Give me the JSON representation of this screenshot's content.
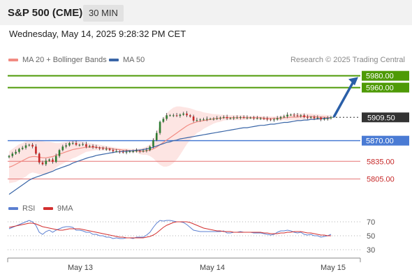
{
  "header": {
    "title": "S&P 500 (CME)",
    "timeframe": "30 MIN"
  },
  "datetime": "Wednesday, May 14, 2025 9:28:32 PM CET",
  "legend": {
    "ma20_label": "MA 20 + Bollinger Bands",
    "ma50_label": "MA 50",
    "credit": "Research © 2025 Trading Central"
  },
  "rsi_legend": {
    "rsi_label": "RSI",
    "ma9_label": "9MA"
  },
  "colors": {
    "candle_up": "#2e7d32",
    "candle_down": "#c62828",
    "ma20": "#f28b82",
    "bollinger_fill": "#fde0de",
    "ma50": "#3a66a7",
    "resistance": "#4e9a06",
    "support_blue": "#4a7bd4",
    "support_red": "#e57373",
    "current_price_bg": "#333333",
    "arrow": "#2a5fa8",
    "rsi_line": "#5b7fd1",
    "rsi_ma": "#d32f2f"
  },
  "chart_data": [
    {
      "type": "candlestick",
      "ylim": [
        5775,
        5995
      ],
      "x_ticks": [
        "May 13",
        "May 14",
        "May 15"
      ],
      "current_price": "5909.50",
      "levels": [
        {
          "value": 5980.0,
          "label": "5980.00",
          "kind": "resistance"
        },
        {
          "value": 5960.0,
          "label": "5960.00",
          "kind": "resistance"
        },
        {
          "value": 5870.0,
          "label": "5870.00",
          "kind": "pivot"
        },
        {
          "value": 5835.0,
          "label": "5835.00",
          "kind": "support"
        },
        {
          "value": 5805.0,
          "label": "5805.00",
          "kind": "support"
        }
      ],
      "arrow": {
        "from": 5910,
        "to": 5978
      },
      "close": [
        5844,
        5848,
        5851,
        5856,
        5858,
        5862,
        5863,
        5860,
        5848,
        5833,
        5830,
        5836,
        5838,
        5834,
        5844,
        5854,
        5860,
        5862,
        5866,
        5866,
        5863,
        5863,
        5864,
        5860,
        5861,
        5859,
        5858,
        5857,
        5856,
        5856,
        5854,
        5852,
        5852,
        5851,
        5850,
        5851,
        5852,
        5852,
        5853,
        5852,
        5853,
        5854,
        5860,
        5871,
        5883,
        5902,
        5907,
        5913,
        5913,
        5913,
        5912,
        5914,
        5916,
        5913,
        5911,
        5904,
        5905,
        5906,
        5906,
        5907,
        5907,
        5907,
        5908,
        5909,
        5910,
        5908,
        5908,
        5909,
        5909,
        5910,
        5909,
        5909,
        5909,
        5908,
        5908,
        5908,
        5907,
        5906,
        5905,
        5906,
        5908,
        5910,
        5911,
        5914,
        5914,
        5913,
        5912,
        5913,
        5910,
        5909,
        5910,
        5908,
        5909,
        5906,
        5907,
        5908,
        5910
      ],
      "ma20": [
        5825,
        5827,
        5830,
        5833,
        5836,
        5839,
        5842,
        5843,
        5843,
        5842,
        5841,
        5841,
        5842,
        5843,
        5845,
        5847,
        5849,
        5851,
        5853,
        5855,
        5856,
        5857,
        5858,
        5859,
        5859,
        5859,
        5859,
        5858,
        5858,
        5857,
        5857,
        5856,
        5855,
        5855,
        5854,
        5854,
        5853,
        5853,
        5853,
        5852,
        5852,
        5853,
        5854,
        5856,
        5859,
        5863,
        5867,
        5871,
        5875,
        5879,
        5883,
        5887,
        5891,
        5895,
        5898,
        5900,
        5902,
        5903,
        5904,
        5905,
        5906,
        5907,
        5908,
        5908,
        5909,
        5909,
        5909,
        5909,
        5909,
        5909,
        5909,
        5909,
        5909,
        5909,
        5909,
        5909,
        5908,
        5908,
        5908,
        5908,
        5908,
        5908,
        5909,
        5909,
        5910,
        5910,
        5910,
        5911,
        5911,
        5911,
        5911,
        5911,
        5910,
        5910,
        5910,
        5909,
        5909
      ],
      "bb_upper": [
        5852,
        5856,
        5860,
        5864,
        5866,
        5869,
        5870,
        5871,
        5871,
        5871,
        5869,
        5868,
        5868,
        5867,
        5866,
        5866,
        5867,
        5868,
        5869,
        5870,
        5870,
        5869,
        5868,
        5867,
        5866,
        5865,
        5864,
        5863,
        5862,
        5861,
        5860,
        5859,
        5858,
        5857,
        5857,
        5857,
        5856,
        5856,
        5856,
        5857,
        5858,
        5860,
        5864,
        5872,
        5884,
        5897,
        5908,
        5916,
        5922,
        5926,
        5928,
        5928,
        5927,
        5926,
        5925,
        5923,
        5921,
        5920,
        5918,
        5917,
        5916,
        5915,
        5915,
        5914,
        5914,
        5913,
        5913,
        5913,
        5913,
        5913,
        5913,
        5912,
        5912,
        5912,
        5912,
        5912,
        5911,
        5911,
        5911,
        5911,
        5911,
        5912,
        5913,
        5914,
        5915,
        5915,
        5916,
        5916,
        5916,
        5916,
        5916,
        5915,
        5915,
        5914,
        5914,
        5913,
        5913
      ],
      "bb_lower": [
        5798,
        5799,
        5800,
        5803,
        5806,
        5809,
        5814,
        5816,
        5815,
        5813,
        5813,
        5814,
        5816,
        5819,
        5824,
        5828,
        5831,
        5834,
        5837,
        5840,
        5842,
        5845,
        5848,
        5851,
        5852,
        5853,
        5854,
        5853,
        5854,
        5853,
        5854,
        5853,
        5852,
        5853,
        5851,
        5851,
        5850,
        5850,
        5850,
        5847,
        5846,
        5846,
        5844,
        5840,
        5834,
        5829,
        5826,
        5826,
        5828,
        5832,
        5838,
        5846,
        5855,
        5864,
        5871,
        5877,
        5883,
        5886,
        5890,
        5893,
        5896,
        5899,
        5901,
        5902,
        5904,
        5905,
        5905,
        5905,
        5905,
        5905,
        5905,
        5906,
        5906,
        5906,
        5906,
        5906,
        5905,
        5905,
        5905,
        5905,
        5905,
        5904,
        5905,
        5904,
        5905,
        5905,
        5904,
        5906,
        5906,
        5906,
        5906,
        5907,
        5905,
        5906,
        5906,
        5905,
        5905
      ],
      "ma50": [
        5779,
        5783,
        5787,
        5791,
        5795,
        5799,
        5803,
        5806,
        5808,
        5810,
        5812,
        5814,
        5816,
        5818,
        5821,
        5823,
        5825,
        5827,
        5829,
        5832,
        5834,
        5836,
        5838,
        5840,
        5842,
        5843,
        5845,
        5846,
        5847,
        5848,
        5849,
        5850,
        5851,
        5851,
        5852,
        5852,
        5853,
        5853,
        5854,
        5854,
        5855,
        5856,
        5857,
        5859,
        5861,
        5863,
        5865,
        5867,
        5868,
        5870,
        5871,
        5873,
        5874,
        5875,
        5876,
        5877,
        5878,
        5879,
        5880,
        5881,
        5882,
        5883,
        5884,
        5885,
        5886,
        5887,
        5888,
        5889,
        5890,
        5891,
        5892,
        5892,
        5893,
        5894,
        5895,
        5896,
        5896,
        5897,
        5898,
        5898,
        5899,
        5900,
        5901,
        5901,
        5902,
        5903,
        5904,
        5904,
        5905,
        5905,
        5906,
        5906,
        5907,
        5907,
        5908,
        5908,
        5909
      ]
    },
    {
      "type": "line",
      "name": "RSI",
      "ylim": [
        20,
        80
      ],
      "y_ticks": [
        30,
        50,
        70
      ],
      "rsi": [
        60,
        62,
        64,
        66,
        68,
        70,
        72,
        70,
        65,
        55,
        52,
        56,
        58,
        55,
        58,
        60,
        62,
        63,
        63,
        62,
        58,
        58,
        57,
        55,
        55,
        52,
        52,
        50,
        50,
        48,
        48,
        46,
        47,
        46,
        46,
        47,
        47,
        46,
        48,
        48,
        48,
        51,
        55,
        62,
        68,
        72,
        71,
        72,
        72,
        71,
        70,
        70,
        69,
        66,
        62,
        58,
        57,
        56,
        56,
        56,
        56,
        56,
        56,
        56,
        57,
        54,
        54,
        55,
        55,
        56,
        55,
        55,
        55,
        54,
        54,
        54,
        53,
        52,
        51,
        52,
        55,
        57,
        57,
        58,
        57,
        55,
        54,
        55,
        52,
        51,
        52,
        50,
        50,
        48,
        49,
        50,
        52
      ],
      "rsi_ma": [
        62,
        63,
        64,
        65,
        66,
        67,
        68,
        68,
        67,
        65,
        63,
        62,
        61,
        60,
        59,
        58,
        58,
        59,
        60,
        60,
        60,
        60,
        59,
        58,
        57,
        56,
        55,
        54,
        53,
        52,
        51,
        50,
        49,
        48,
        48,
        47,
        47,
        47,
        47,
        47,
        47,
        48,
        49,
        51,
        54,
        58,
        62,
        65,
        67,
        69,
        70,
        70,
        70,
        70,
        69,
        67,
        65,
        63,
        61,
        60,
        59,
        58,
        57,
        57,
        56,
        56,
        56,
        55,
        55,
        55,
        55,
        55,
        55,
        55,
        55,
        55,
        54,
        54,
        53,
        53,
        53,
        54,
        54,
        55,
        55,
        56,
        56,
        56,
        55,
        54,
        54,
        53,
        52,
        51,
        51,
        50,
        50
      ]
    }
  ]
}
